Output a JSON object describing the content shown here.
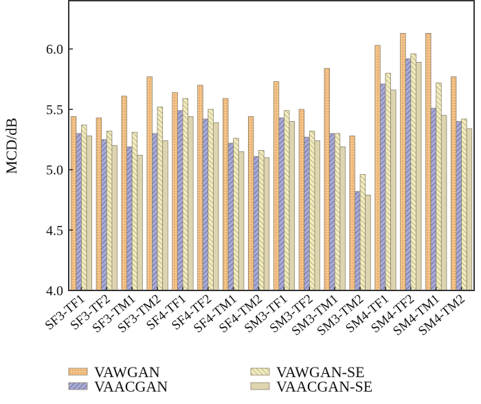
{
  "chart_data": {
    "type": "bar",
    "title": "",
    "xlabel": "",
    "ylabel": "MCD/dB",
    "ylim": [
      4.0,
      6.4
    ],
    "yticks": [
      "4.0",
      "4.5",
      "5.0",
      "5.5",
      "6.0"
    ],
    "grid": false,
    "legend_position": "bottom",
    "categories": [
      "SF3-TF1",
      "SF3-TF2",
      "SF3-TM1",
      "SF3-TM2",
      "SF4-TF1",
      "SF4-TF2",
      "SF4-TM1",
      "SF4-TM2",
      "SM3-TF1",
      "SM3-TF2",
      "SM3-TM1",
      "SM3-TM2",
      "SM4-TF1",
      "SM4-TF2",
      "SM4-TM1",
      "SM4-TM2"
    ],
    "series": [
      {
        "name": "VAWGAN",
        "color": "#f5c48a",
        "values": [
          5.44,
          5.43,
          5.61,
          5.77,
          5.64,
          5.7,
          5.59,
          5.44,
          5.73,
          5.5,
          5.84,
          5.28,
          6.03,
          6.13,
          6.13,
          5.77
        ]
      },
      {
        "name": "VAACGAN",
        "color": "#a9abd6",
        "values": [
          5.3,
          5.25,
          5.19,
          5.3,
          5.49,
          5.42,
          5.22,
          5.11,
          5.43,
          5.27,
          5.3,
          4.82,
          5.71,
          5.92,
          5.51,
          5.4
        ]
      },
      {
        "name": "VAWGAN-SE",
        "color": "#f2ecbe",
        "values": [
          5.37,
          5.32,
          5.31,
          5.52,
          5.59,
          5.5,
          5.26,
          5.16,
          5.49,
          5.32,
          5.3,
          4.96,
          5.8,
          5.96,
          5.72,
          5.42
        ]
      },
      {
        "name": "VAACGAN-SE",
        "color": "#ddd5b0",
        "values": [
          5.28,
          5.2,
          5.12,
          5.24,
          5.44,
          5.39,
          5.15,
          5.1,
          5.4,
          5.24,
          5.19,
          4.79,
          5.66,
          5.89,
          5.45,
          5.34
        ]
      }
    ]
  }
}
